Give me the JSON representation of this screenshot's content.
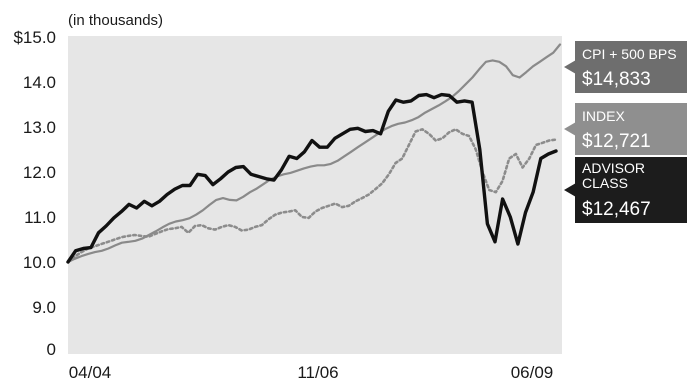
{
  "chart_data": {
    "type": "line",
    "unit_note": "(in thousands)",
    "x_tick_labels": [
      "04/04",
      "11/06",
      "06/09"
    ],
    "y_ticks": [
      {
        "value": 15.0,
        "label": "$15.0"
      },
      {
        "value": 14.0,
        "label": "14.0"
      },
      {
        "value": 13.0,
        "label": "13.0"
      },
      {
        "value": 12.0,
        "label": "12.0"
      },
      {
        "value": 11.0,
        "label": "11.0"
      },
      {
        "value": 10.0,
        "label": "10.0"
      },
      {
        "value": 9.0,
        "label": "9.0"
      },
      {
        "value": 0,
        "label": "0"
      }
    ],
    "axis_break": true,
    "grid": false,
    "x_range": [
      "04/04",
      "06/09"
    ],
    "ylim": [
      0,
      15.0
    ],
    "colors": {
      "plot_background": "#e6e6e6",
      "cpi_line": "#8a8a8a",
      "index_line": "#8c8c8c",
      "advisor_line": "#111111",
      "cpi_label_bg": "#6e6e6e",
      "index_label_bg": "#8f8f8f",
      "advisor_label_bg": "#1c1c1c"
    },
    "series": [
      {
        "name": "CPI + 500 BPS",
        "end_value": "$14,833",
        "style": "solid-gray",
        "values": [
          10.0,
          10.07,
          10.13,
          10.18,
          10.22,
          10.25,
          10.3,
          10.37,
          10.43,
          10.45,
          10.47,
          10.52,
          10.6,
          10.68,
          10.77,
          10.85,
          10.9,
          10.93,
          10.97,
          11.05,
          11.15,
          11.27,
          11.38,
          11.42,
          11.38,
          11.37,
          11.45,
          11.55,
          11.63,
          11.73,
          11.83,
          11.9,
          11.95,
          11.98,
          12.03,
          12.08,
          12.12,
          12.15,
          12.15,
          12.18,
          12.25,
          12.35,
          12.45,
          12.55,
          12.65,
          12.75,
          12.85,
          12.95,
          13.02,
          13.07,
          13.1,
          13.15,
          13.22,
          13.32,
          13.4,
          13.48,
          13.57,
          13.67,
          13.8,
          13.95,
          14.1,
          14.28,
          14.45,
          14.48,
          14.45,
          14.35,
          14.15,
          14.1,
          14.22,
          14.35,
          14.45,
          14.55,
          14.65,
          14.833
        ]
      },
      {
        "name": "INDEX",
        "end_value": "$12,721",
        "style": "dotted",
        "values": [
          10.0,
          10.12,
          10.22,
          10.3,
          10.35,
          10.4,
          10.45,
          10.5,
          10.55,
          10.58,
          10.6,
          10.58,
          10.56,
          10.62,
          10.68,
          10.73,
          10.75,
          10.78,
          10.65,
          10.8,
          10.82,
          10.75,
          10.72,
          10.78,
          10.82,
          10.78,
          10.7,
          10.72,
          10.78,
          10.82,
          10.95,
          11.05,
          11.1,
          11.12,
          11.15,
          11.0,
          10.98,
          11.12,
          11.2,
          11.25,
          11.3,
          11.22,
          11.25,
          11.35,
          11.42,
          11.5,
          11.62,
          11.75,
          11.95,
          12.2,
          12.3,
          12.6,
          12.9,
          12.95,
          12.85,
          12.7,
          12.75,
          12.88,
          12.95,
          12.85,
          12.8,
          12.5,
          12.0,
          11.6,
          11.55,
          11.8,
          12.3,
          12.4,
          12.1,
          12.3,
          12.6,
          12.65,
          12.7,
          12.721
        ]
      },
      {
        "name": "ADVISOR CLASS",
        "end_value": "$12,467",
        "style": "solid-black-thick",
        "values": [
          10.0,
          10.25,
          10.3,
          10.32,
          10.65,
          10.8,
          10.98,
          11.12,
          11.28,
          11.2,
          11.35,
          11.25,
          11.35,
          11.5,
          11.62,
          11.7,
          11.7,
          11.95,
          11.92,
          11.72,
          11.85,
          12.0,
          12.1,
          12.12,
          11.95,
          11.9,
          11.85,
          11.82,
          12.05,
          12.35,
          12.3,
          12.45,
          12.7,
          12.55,
          12.55,
          12.75,
          12.85,
          12.95,
          12.97,
          12.9,
          12.92,
          12.85,
          13.35,
          13.6,
          13.55,
          13.58,
          13.7,
          13.72,
          13.65,
          13.72,
          13.7,
          13.55,
          13.58,
          13.55,
          12.5,
          10.85,
          10.45,
          11.4,
          11.0,
          10.4,
          11.1,
          11.55,
          12.3,
          12.4,
          12.467
        ]
      }
    ]
  }
}
